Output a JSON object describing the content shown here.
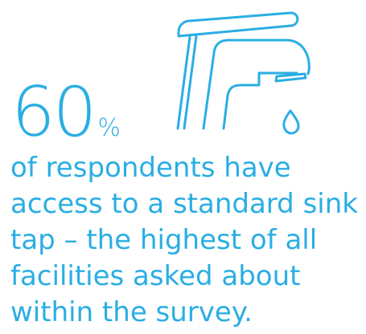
{
  "colors": {
    "accent": "#2AAEE3",
    "background": "#ffffff"
  },
  "statistic": {
    "value": "60",
    "unit": "%"
  },
  "icon": {
    "name": "water-tap-icon"
  },
  "caption": {
    "lines": [
      "of respondents have",
      "access to a standard sink",
      "tap – the highest of all",
      "facilities asked about",
      "within the survey."
    ]
  }
}
